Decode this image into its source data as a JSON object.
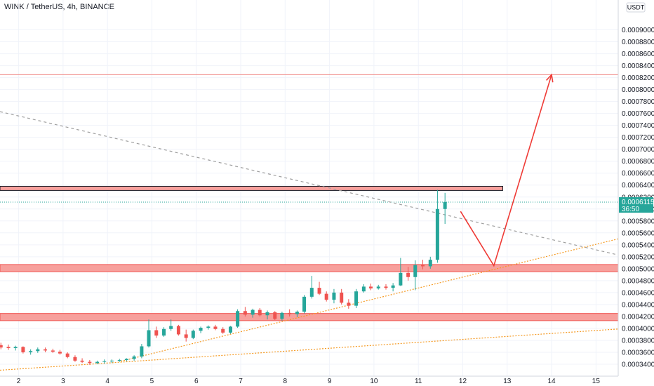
{
  "header": {
    "title": "WINK / TetherUS, 4h, BINANCE"
  },
  "axis": {
    "currency": "USDT"
  },
  "last_price": {
    "value": "0.0006115",
    "countdown": "36:50",
    "color": "#26a69a"
  },
  "colors": {
    "up": "#26a69a",
    "down": "#ef5350",
    "zone_fill": "#f7a09c",
    "zone_border": "#ef5350",
    "resistance_line": "#f08c88",
    "trendline_dotted": "#f59a23",
    "trendline_dashed": "#9e9e9e",
    "projection_arrow": "#ef3b36",
    "grid": "#f0f3fa"
  },
  "chart_data": {
    "type": "candlestick",
    "symbol": "WINK / TetherUS",
    "timeframe": "4h",
    "exchange": "BINANCE",
    "x_ticks": [
      "2",
      "3",
      "4",
      "5",
      "6",
      "7",
      "8",
      "9",
      "10",
      "11",
      "12",
      "13",
      "14",
      "15"
    ],
    "x_range": [
      1.58,
      15.5
    ],
    "ylim": [
      0.00032,
      0.00095
    ],
    "y_ticks": [
      "0.0003400",
      "0.0003600",
      "0.0003800",
      "0.0004000",
      "0.0004200",
      "0.0004400",
      "0.0004600",
      "0.0004800",
      "0.0005000",
      "0.0005200",
      "0.0005400",
      "0.0005600",
      "0.0005800",
      "0.0006000",
      "0.0006200",
      "0.0006400",
      "0.0006600",
      "0.0006800",
      "0.0007000",
      "0.0007200",
      "0.0007400",
      "0.0007600",
      "0.0007800",
      "0.0008000",
      "0.0008200",
      "0.0008400",
      "0.0008600",
      "0.0008800",
      "0.0009000"
    ],
    "candles": [
      {
        "t": 1.6,
        "o": 0.000372,
        "h": 0.000376,
        "l": 0.000365,
        "c": 0.000368
      },
      {
        "t": 1.77,
        "o": 0.000369,
        "h": 0.000373,
        "l": 0.000364,
        "c": 0.000367
      },
      {
        "t": 1.93,
        "o": 0.000367,
        "h": 0.000371,
        "l": 0.000363,
        "c": 0.000369
      },
      {
        "t": 2.1,
        "o": 0.000369,
        "h": 0.00037,
        "l": 0.000358,
        "c": 0.00036
      },
      {
        "t": 2.27,
        "o": 0.00036,
        "h": 0.000365,
        "l": 0.000356,
        "c": 0.000362
      },
      {
        "t": 2.43,
        "o": 0.000362,
        "h": 0.000368,
        "l": 0.000359,
        "c": 0.000365
      },
      {
        "t": 2.6,
        "o": 0.000365,
        "h": 0.000368,
        "l": 0.00036,
        "c": 0.000363
      },
      {
        "t": 2.77,
        "o": 0.000363,
        "h": 0.000366,
        "l": 0.000359,
        "c": 0.000361
      },
      {
        "t": 2.93,
        "o": 0.000361,
        "h": 0.000364,
        "l": 0.000356,
        "c": 0.000358
      },
      {
        "t": 3.1,
        "o": 0.000358,
        "h": 0.00036,
        "l": 0.00035,
        "c": 0.000352
      },
      {
        "t": 3.27,
        "o": 0.000352,
        "h": 0.000355,
        "l": 0.000344,
        "c": 0.000346
      },
      {
        "t": 3.43,
        "o": 0.000346,
        "h": 0.00035,
        "l": 0.000342,
        "c": 0.000344
      },
      {
        "t": 3.6,
        "o": 0.000344,
        "h": 0.000347,
        "l": 0.000339,
        "c": 0.000342
      },
      {
        "t": 3.77,
        "o": 0.000342,
        "h": 0.000346,
        "l": 0.00034,
        "c": 0.000344
      },
      {
        "t": 3.93,
        "o": 0.000344,
        "h": 0.000348,
        "l": 0.000341,
        "c": 0.000345
      },
      {
        "t": 4.1,
        "o": 0.000345,
        "h": 0.000348,
        "l": 0.000342,
        "c": 0.000346
      },
      {
        "t": 4.27,
        "o": 0.000346,
        "h": 0.000349,
        "l": 0.000344,
        "c": 0.000347
      },
      {
        "t": 4.43,
        "o": 0.000347,
        "h": 0.00035,
        "l": 0.000345,
        "c": 0.000349
      },
      {
        "t": 4.6,
        "o": 0.000349,
        "h": 0.000355,
        "l": 0.000346,
        "c": 0.000353
      },
      {
        "t": 4.77,
        "o": 0.000353,
        "h": 0.000374,
        "l": 0.00035,
        "c": 0.00037
      },
      {
        "t": 4.93,
        "o": 0.00037,
        "h": 0.000415,
        "l": 0.000368,
        "c": 0.000397
      },
      {
        "t": 5.1,
        "o": 0.000397,
        "h": 0.000403,
        "l": 0.000384,
        "c": 0.000388
      },
      {
        "t": 5.27,
        "o": 0.000388,
        "h": 0.000402,
        "l": 0.000386,
        "c": 0.000399
      },
      {
        "t": 5.43,
        "o": 0.000399,
        "h": 0.000415,
        "l": 0.000396,
        "c": 0.000404
      },
      {
        "t": 5.6,
        "o": 0.000404,
        "h": 0.000406,
        "l": 0.000388,
        "c": 0.00039
      },
      {
        "t": 5.77,
        "o": 0.00039,
        "h": 0.000398,
        "l": 0.000378,
        "c": 0.000384
      },
      {
        "t": 5.93,
        "o": 0.000384,
        "h": 0.000398,
        "l": 0.000382,
        "c": 0.000396
      },
      {
        "t": 6.1,
        "o": 0.000396,
        "h": 0.000403,
        "l": 0.000392,
        "c": 0.000401
      },
      {
        "t": 6.27,
        "o": 0.000401,
        "h": 0.000405,
        "l": 0.000398,
        "c": 0.000403
      },
      {
        "t": 6.43,
        "o": 0.000403,
        "h": 0.000406,
        "l": 0.000397,
        "c": 0.000399
      },
      {
        "t": 6.6,
        "o": 0.000399,
        "h": 0.000402,
        "l": 0.000391,
        "c": 0.000393
      },
      {
        "t": 6.77,
        "o": 0.000393,
        "h": 0.000404,
        "l": 0.000391,
        "c": 0.000403
      },
      {
        "t": 6.93,
        "o": 0.000403,
        "h": 0.000432,
        "l": 0.000401,
        "c": 0.000429
      },
      {
        "t": 7.1,
        "o": 0.000429,
        "h": 0.000436,
        "l": 0.00042,
        "c": 0.000423
      },
      {
        "t": 7.27,
        "o": 0.000423,
        "h": 0.000433,
        "l": 0.000418,
        "c": 0.000431
      },
      {
        "t": 7.43,
        "o": 0.000431,
        "h": 0.000434,
        "l": 0.00042,
        "c": 0.000422
      },
      {
        "t": 7.6,
        "o": 0.000422,
        "h": 0.00043,
        "l": 0.000415,
        "c": 0.000427
      },
      {
        "t": 7.77,
        "o": 0.000427,
        "h": 0.000429,
        "l": 0.000414,
        "c": 0.000416
      },
      {
        "t": 7.93,
        "o": 0.000416,
        "h": 0.000428,
        "l": 0.000413,
        "c": 0.000426
      },
      {
        "t": 8.1,
        "o": 0.000426,
        "h": 0.000432,
        "l": 0.00042,
        "c": 0.000424
      },
      {
        "t": 8.27,
        "o": 0.000424,
        "h": 0.00043,
        "l": 0.000419,
        "c": 0.000428
      },
      {
        "t": 8.43,
        "o": 0.000428,
        "h": 0.000456,
        "l": 0.000425,
        "c": 0.000453
      },
      {
        "t": 8.6,
        "o": 0.000453,
        "h": 0.000488,
        "l": 0.00045,
        "c": 0.000468
      },
      {
        "t": 8.77,
        "o": 0.000468,
        "h": 0.000478,
        "l": 0.000456,
        "c": 0.000458
      },
      {
        "t": 8.93,
        "o": 0.000458,
        "h": 0.000462,
        "l": 0.000445,
        "c": 0.000448
      },
      {
        "t": 9.1,
        "o": 0.000448,
        "h": 0.000466,
        "l": 0.000442,
        "c": 0.00046
      },
      {
        "t": 9.27,
        "o": 0.00046,
        "h": 0.000466,
        "l": 0.00044,
        "c": 0.000443
      },
      {
        "t": 9.43,
        "o": 0.000443,
        "h": 0.000449,
        "l": 0.000433,
        "c": 0.000438
      },
      {
        "t": 9.6,
        "o": 0.000438,
        "h": 0.000466,
        "l": 0.000434,
        "c": 0.000462
      },
      {
        "t": 9.77,
        "o": 0.000462,
        "h": 0.000474,
        "l": 0.00046,
        "c": 0.00047
      },
      {
        "t": 9.93,
        "o": 0.00047,
        "h": 0.000475,
        "l": 0.000464,
        "c": 0.000467
      },
      {
        "t": 10.1,
        "o": 0.000467,
        "h": 0.000473,
        "l": 0.000465,
        "c": 0.00047
      },
      {
        "t": 10.27,
        "o": 0.00047,
        "h": 0.000474,
        "l": 0.000465,
        "c": 0.000468
      },
      {
        "t": 10.43,
        "o": 0.000468,
        "h": 0.000476,
        "l": 0.000462,
        "c": 0.000472
      },
      {
        "t": 10.6,
        "o": 0.000472,
        "h": 0.000518,
        "l": 0.000471,
        "c": 0.000493
      },
      {
        "t": 10.77,
        "o": 0.000493,
        "h": 0.000503,
        "l": 0.00048,
        "c": 0.000486
      },
      {
        "t": 10.93,
        "o": 0.000486,
        "h": 0.000514,
        "l": 0.000464,
        "c": 0.000506
      },
      {
        "t": 11.1,
        "o": 0.000506,
        "h": 0.000515,
        "l": 0.000499,
        "c": 0.000504
      },
      {
        "t": 11.27,
        "o": 0.000504,
        "h": 0.00052,
        "l": 0.0005,
        "c": 0.000515
      },
      {
        "t": 11.43,
        "o": 0.000515,
        "h": 0.000632,
        "l": 0.00051,
        "c": 0.0006
      },
      {
        "t": 11.6,
        "o": 0.0006,
        "h": 0.000627,
        "l": 0.000575,
        "c": 0.0006115
      }
    ],
    "zones": [
      {
        "kind": "resistance-thin",
        "y_low": 0.000631,
        "y_high": 0.000638,
        "t_start": 1.58,
        "t_end": 12.9
      },
      {
        "kind": "support-mid",
        "y_low": 0.000495,
        "y_high": 0.000507,
        "t_start": 1.58,
        "t_end": 15.5
      },
      {
        "kind": "support-low",
        "y_low": 0.000413,
        "y_high": 0.000425,
        "t_start": 1.58,
        "t_end": 15.5
      }
    ],
    "horizontal_lines": [
      {
        "kind": "target",
        "y": 0.000825
      },
      {
        "kind": "last-price",
        "y": 0.0006115
      }
    ],
    "trendlines": [
      {
        "kind": "dashed-descending",
        "p1": [
          1.58,
          0.000763
        ],
        "p2": [
          15.5,
          0.000523
        ]
      },
      {
        "kind": "dotted-rising-steep",
        "p1": [
          4.3,
          0.000345
        ],
        "p2": [
          15.5,
          0.00055
        ]
      },
      {
        "kind": "dotted-rising-shallow",
        "p1": [
          1.58,
          0.00033
        ],
        "p2": [
          15.5,
          0.000399
        ]
      }
    ],
    "projection_path": [
      [
        11.95,
        0.000596
      ],
      [
        12.7,
        0.000505
      ],
      [
        14.0,
        0.000825
      ]
    ]
  }
}
